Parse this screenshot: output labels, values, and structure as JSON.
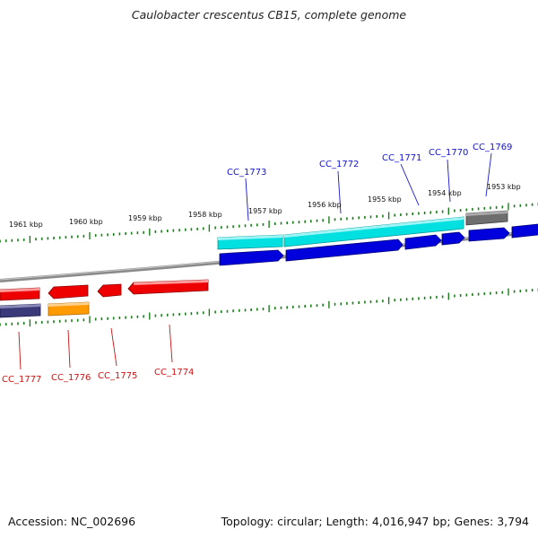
{
  "title": "Caulobacter crescentus CB15, complete genome",
  "footer": {
    "accession": "Accession: NC_002696",
    "topology": "Topology: circular; Length: 4,016,947 bp; Genes: 3,794"
  },
  "colors": {
    "backbone": "#808080",
    "tick": "#1a7f1a",
    "label_top": "#1414cc",
    "label_bottom": "#cc1414",
    "cyan": "#00e0e0",
    "blue": "#0000dd",
    "gray": "#6e6e6e",
    "red": "#ee0000",
    "orange": "#ff9a00",
    "navy": "#3a3a7a"
  },
  "kbp_labels": [
    "1961 kbp",
    "1960 kbp",
    "1959 kbp",
    "1958 kbp",
    "1957 kbp",
    "1956 kbp",
    "1955 kbp",
    "1954 kbp",
    "1953 kbp"
  ],
  "gene_labels_top": [
    "CC_1773",
    "CC_1772",
    "CC_1771",
    "CC_1770",
    "CC_1769"
  ],
  "gene_labels_bottom": [
    "CC_1777",
    "CC_1776",
    "CC_1775",
    "CC_1774"
  ]
}
